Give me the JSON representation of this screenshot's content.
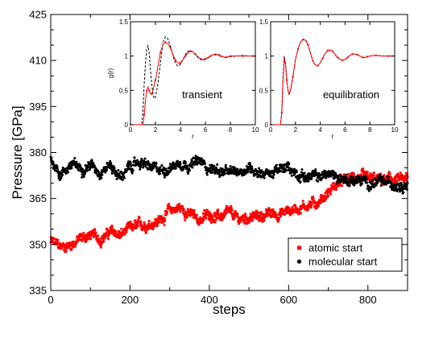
{
  "chart_data": [
    {
      "id": "main",
      "type": "scatter",
      "xlabel": "steps",
      "ylabel": "Pressure [GPa]",
      "xlim": [
        0,
        900
      ],
      "ylim": [
        335,
        425
      ],
      "xticks": [
        0,
        200,
        400,
        600,
        800
      ],
      "yticks": [
        335,
        350,
        365,
        380,
        395,
        410,
        425
      ],
      "grid": false,
      "legend": "bottom-right",
      "series": [
        {
          "name": "atomic start",
          "color": "#ff0000",
          "marker": "square",
          "x": [
            0,
            25,
            50,
            75,
            100,
            125,
            150,
            175,
            200,
            225,
            250,
            275,
            300,
            325,
            350,
            375,
            400,
            425,
            450,
            475,
            500,
            525,
            550,
            575,
            600,
            625,
            650,
            675,
            700,
            725,
            750,
            775,
            800,
            825,
            850,
            875,
            900
          ],
          "y": [
            351,
            349,
            350,
            352,
            353,
            352,
            354,
            353,
            355,
            356,
            357,
            358,
            361,
            362,
            360,
            358,
            360,
            359,
            360,
            358,
            359,
            359,
            360,
            360,
            361,
            362,
            363,
            364,
            367,
            370,
            371,
            372,
            371,
            371,
            371,
            371,
            371
          ]
        },
        {
          "name": "molecular start",
          "color": "#000000",
          "marker": "circle",
          "x": [
            0,
            25,
            50,
            75,
            100,
            125,
            150,
            175,
            200,
            225,
            250,
            275,
            300,
            325,
            350,
            375,
            400,
            425,
            450,
            475,
            500,
            525,
            550,
            575,
            600,
            625,
            650,
            675,
            700,
            725,
            750,
            775,
            800,
            825,
            850,
            875,
            900
          ],
          "y": [
            378,
            373,
            376,
            375,
            376,
            374,
            376,
            372,
            375,
            377,
            375,
            374,
            375,
            377,
            376,
            377,
            375,
            374,
            373,
            374,
            375,
            374,
            373,
            374,
            375,
            373,
            372,
            372,
            373,
            372,
            371,
            371,
            370,
            370,
            370,
            370,
            370
          ]
        }
      ]
    },
    {
      "id": "inset-transient",
      "type": "line",
      "label": "transient",
      "xlabel": "r",
      "ylabel": "g(r)",
      "xlim": [
        0,
        10
      ],
      "ylim": [
        0,
        1.5
      ],
      "xticks": [
        0,
        2,
        4,
        6,
        8,
        10
      ],
      "yticks": [
        0,
        0.5,
        1,
        1.5
      ],
      "ytick_labels": [
        "0",
        "0.5",
        "1",
        "1.5"
      ],
      "series": [
        {
          "color": "#000000",
          "style": "dashed",
          "x": [
            0,
            0.9,
            1.0,
            1.1,
            1.2,
            1.3,
            1.4,
            1.5,
            1.6,
            1.7,
            1.8,
            1.9,
            2.0,
            2.2,
            2.4,
            2.6,
            2.8,
            3.0,
            3.2,
            3.4,
            3.6,
            3.8,
            4.0,
            4.2,
            4.4,
            4.6,
            4.8,
            5.0,
            5.2,
            5.4,
            5.6,
            5.8,
            6.0,
            6.2,
            6.4,
            6.6,
            6.8,
            7.0,
            7.2,
            7.4,
            7.6,
            7.8,
            8.0,
            8.5,
            9.0,
            9.5,
            10.0
          ],
          "y": [
            0,
            0,
            0.2,
            0.6,
            0.9,
            1.1,
            1.15,
            1.05,
            0.8,
            0.6,
            0.45,
            0.38,
            0.4,
            0.6,
            0.9,
            1.2,
            1.28,
            1.25,
            1.15,
            1.0,
            0.9,
            0.85,
            0.88,
            0.95,
            1.02,
            1.07,
            1.08,
            1.06,
            1.02,
            0.98,
            0.95,
            0.94,
            0.95,
            0.97,
            1.0,
            1.02,
            1.03,
            1.03,
            1.01,
            0.99,
            0.98,
            0.98,
            0.99,
            1.0,
            1.01,
            1.0,
            1.0
          ]
        },
        {
          "color": "#ff0000",
          "style": "solid",
          "x": [
            0,
            1.0,
            1.1,
            1.2,
            1.3,
            1.4,
            1.5,
            1.6,
            1.7,
            1.8,
            2.0,
            2.2,
            2.4,
            2.6,
            2.8,
            3.0,
            3.2,
            3.4,
            3.6,
            3.8,
            4.0,
            4.2,
            4.4,
            4.6,
            4.8,
            5.0,
            5.2,
            5.4,
            5.6,
            5.8,
            6.0,
            6.2,
            6.4,
            6.6,
            6.8,
            7.0,
            7.2,
            7.4,
            7.6,
            7.8,
            8.0,
            8.5,
            9.0,
            9.5,
            10.0
          ],
          "y": [
            0,
            0,
            0.15,
            0.35,
            0.5,
            0.55,
            0.5,
            0.45,
            0.45,
            0.5,
            0.65,
            0.85,
            1.05,
            1.17,
            1.2,
            1.18,
            1.12,
            1.02,
            0.94,
            0.9,
            0.9,
            0.95,
            1.0,
            1.05,
            1.07,
            1.06,
            1.03,
            0.99,
            0.96,
            0.95,
            0.96,
            0.98,
            1.0,
            1.02,
            1.02,
            1.02,
            1.0,
            0.99,
            0.98,
            0.99,
            1.0,
            1.0,
            1.0,
            1.0,
            1.0
          ]
        }
      ]
    },
    {
      "id": "inset-equilibration",
      "type": "line",
      "label": "equilibration",
      "xlabel": "r",
      "ylabel": "",
      "xlim": [
        0,
        10
      ],
      "ylim": [
        0,
        1.5
      ],
      "xticks": [
        0,
        2,
        4,
        6,
        8,
        10
      ],
      "yticks": [
        0,
        0.5,
        1,
        1.5
      ],
      "ytick_labels": [
        "0",
        "0.5",
        "1",
        "1.5"
      ],
      "series": [
        {
          "color": "#000000",
          "style": "dashed",
          "x": [
            0,
            0.8,
            0.9,
            1.0,
            1.1,
            1.2,
            1.3,
            1.4,
            1.5,
            1.6,
            1.8,
            2.0,
            2.2,
            2.4,
            2.6,
            2.8,
            3.0,
            3.2,
            3.4,
            3.6,
            3.8,
            4.0,
            4.2,
            4.4,
            4.6,
            4.8,
            5.0,
            5.2,
            5.4,
            5.6,
            5.8,
            6.0,
            6.2,
            6.4,
            6.6,
            6.8,
            7.0,
            7.2,
            7.4,
            7.6,
            7.8,
            8.0,
            8.5,
            9.0,
            9.5,
            10.0
          ],
          "y": [
            0,
            0,
            0.2,
            0.7,
            1.0,
            0.9,
            0.65,
            0.5,
            0.45,
            0.5,
            0.7,
            0.95,
            1.1,
            1.2,
            1.24,
            1.24,
            1.18,
            1.05,
            0.93,
            0.87,
            0.86,
            0.9,
            0.97,
            1.04,
            1.08,
            1.09,
            1.07,
            1.02,
            0.98,
            0.95,
            0.94,
            0.95,
            0.98,
            1.01,
            1.03,
            1.03,
            1.02,
            1.0,
            0.98,
            0.98,
            0.99,
            1.0,
            1.01,
            1.0,
            1.0,
            1.0
          ]
        },
        {
          "color": "#ff0000",
          "style": "solid",
          "x": [
            0,
            0.8,
            0.9,
            1.0,
            1.1,
            1.2,
            1.3,
            1.4,
            1.5,
            1.6,
            1.8,
            2.0,
            2.2,
            2.4,
            2.6,
            2.8,
            3.0,
            3.2,
            3.4,
            3.6,
            3.8,
            4.0,
            4.2,
            4.4,
            4.6,
            4.8,
            5.0,
            5.2,
            5.4,
            5.6,
            5.8,
            6.0,
            6.2,
            6.4,
            6.6,
            6.8,
            7.0,
            7.2,
            7.4,
            7.6,
            7.8,
            8.0,
            8.5,
            9.0,
            9.5,
            10.0
          ],
          "y": [
            0,
            0,
            0.18,
            0.65,
            0.95,
            0.88,
            0.65,
            0.5,
            0.45,
            0.5,
            0.7,
            0.95,
            1.1,
            1.2,
            1.24,
            1.23,
            1.17,
            1.05,
            0.93,
            0.87,
            0.86,
            0.9,
            0.97,
            1.04,
            1.08,
            1.09,
            1.07,
            1.02,
            0.98,
            0.95,
            0.94,
            0.95,
            0.98,
            1.01,
            1.03,
            1.03,
            1.02,
            1.0,
            0.98,
            0.98,
            0.99,
            1.0,
            1.01,
            1.0,
            1.0,
            1.0
          ]
        }
      ]
    }
  ]
}
